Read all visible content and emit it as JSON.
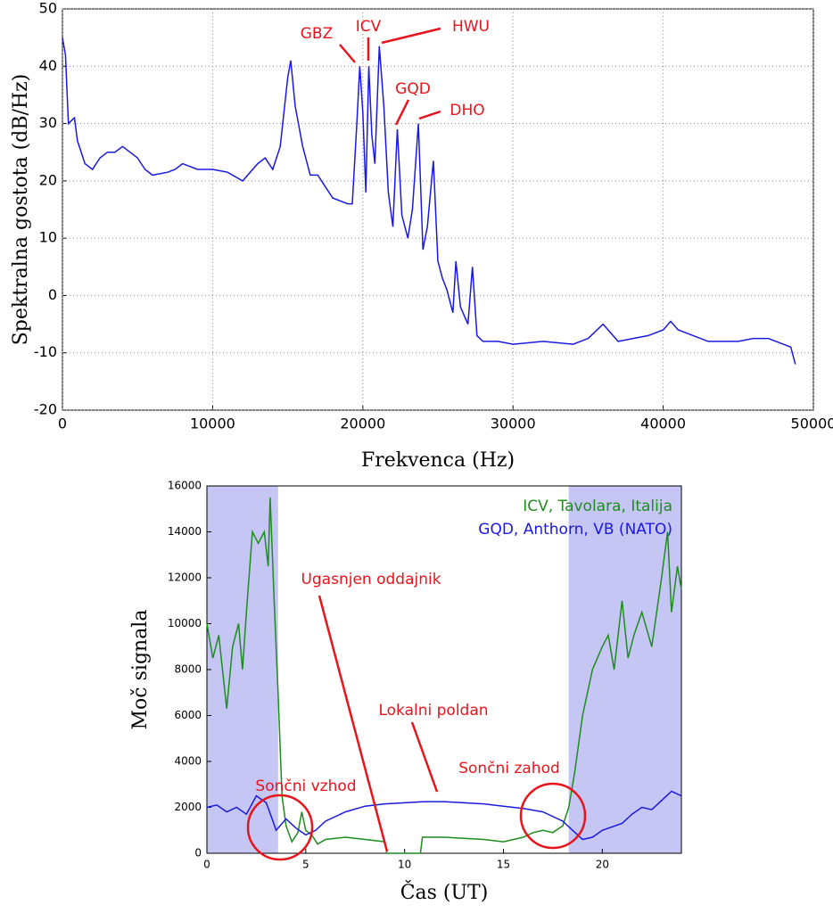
{
  "chart_data": [
    {
      "type": "line",
      "xlabel": "Frekvenca (Hz)",
      "ylabel": "Spektralna gostota (dB/Hz)",
      "xlim": [
        0,
        50000
      ],
      "xticks": [
        0,
        10000,
        20000,
        30000,
        40000,
        50000
      ],
      "ylim": [
        -20,
        50
      ],
      "yticks": [
        -20,
        -10,
        0,
        10,
        20,
        30,
        40,
        50
      ],
      "grid": true,
      "annotations": [
        "GBZ",
        "ICV",
        "HWU",
        "GQD",
        "DHO"
      ],
      "annotation_color": "#e8141c",
      "x": [
        0,
        200,
        400,
        800,
        1000,
        1500,
        2000,
        2500,
        3000,
        3500,
        4000,
        4500,
        5000,
        5500,
        6000,
        7000,
        7500,
        8000,
        9000,
        10000,
        11000,
        12000,
        13000,
        13500,
        14000,
        14500,
        15000,
        15200,
        15500,
        16000,
        16500,
        17000,
        17500,
        18000,
        19000,
        19300,
        19600,
        19800,
        20000,
        20200,
        20400,
        20600,
        20800,
        21100,
        21400,
        21700,
        22000,
        22300,
        22600,
        23000,
        23300,
        23700,
        24000,
        24300,
        24700,
        25000,
        25300,
        25600,
        26000,
        26200,
        26500,
        27000,
        27300,
        27600,
        28000,
        29000,
        30000,
        32000,
        34000,
        35000,
        36000,
        37000,
        38000,
        39000,
        40000,
        40500,
        41000,
        42000,
        43000,
        44000,
        45000,
        46000,
        47000,
        48000,
        48500,
        48800
      ],
      "series": [
        {
          "name": null,
          "color": "#1a1adf",
          "values": [
            45,
            42,
            30,
            31,
            27,
            23,
            22,
            24,
            25,
            25,
            26,
            25,
            24,
            22,
            21,
            21.5,
            22,
            23,
            22,
            22,
            21.5,
            20,
            23,
            24,
            22,
            26,
            38,
            41,
            33,
            26,
            21,
            21,
            19,
            17,
            16,
            16,
            30,
            40,
            32,
            18,
            40,
            28,
            23,
            43.5,
            33,
            18,
            12,
            29,
            14,
            10,
            15,
            30,
            8,
            12,
            23.5,
            6,
            3,
            1,
            -3,
            6,
            -2,
            -5,
            5,
            -7,
            -8,
            -8,
            -8.5,
            -8,
            -8.5,
            -7.5,
            -5,
            -8,
            -7.5,
            -7,
            -6,
            -4.5,
            -6,
            -7,
            -8,
            -8,
            -8,
            -7.5,
            -7.5,
            -8.5,
            -9,
            -12
          ]
        }
      ]
    },
    {
      "type": "line",
      "xlabel": "Čas (UT)",
      "ylabel": "Moč signala",
      "xlim": [
        0,
        24
      ],
      "xticks": [
        0,
        5,
        10,
        15,
        20
      ],
      "ylim": [
        0,
        16000
      ],
      "yticks": [
        0,
        2000,
        4000,
        6000,
        8000,
        10000,
        12000,
        14000,
        16000
      ],
      "grid": false,
      "shaded_spans": [
        [
          0,
          3.6
        ],
        [
          18.3,
          24
        ]
      ],
      "shade_color": "#c6c6f5",
      "annotations": [
        "Ugasnjen oddajnik",
        "Lokalni poldan",
        "Sončni vzhod",
        "Sončni zahod"
      ],
      "annotation_color": "#e8141c",
      "series": [
        {
          "name": "ICV, Tavolara, Italija",
          "color": "#1e8c1e",
          "x": [
            0,
            0.3,
            0.6,
            1,
            1.3,
            1.6,
            1.8,
            2,
            2.3,
            2.6,
            2.9,
            3.1,
            3.2,
            3.4,
            3.6,
            3.8,
            4,
            4.3,
            4.6,
            4.8,
            5,
            5.3,
            5.6,
            6,
            7,
            8,
            9,
            9.1,
            10.8,
            10.9,
            12,
            13,
            14,
            15,
            16,
            16.5,
            17,
            17.5,
            18,
            18.3,
            18.6,
            19,
            19.5,
            20,
            20.3,
            20.6,
            21,
            21.3,
            21.6,
            22,
            22.5,
            23,
            23.3,
            23.5,
            23.8,
            24
          ],
          "values": [
            10000,
            8500,
            9500,
            6300,
            9000,
            10000,
            8000,
            10500,
            14000,
            13500,
            14000,
            12500,
            15500,
            11000,
            7000,
            2500,
            1200,
            500,
            900,
            1800,
            1000,
            800,
            400,
            600,
            700,
            600,
            500,
            0,
            0,
            700,
            700,
            650,
            600,
            500,
            700,
            900,
            1000,
            900,
            1200,
            2000,
            3500,
            6000,
            8000,
            9000,
            9500,
            8000,
            11000,
            8500,
            9500,
            10500,
            9000,
            12000,
            14000,
            10500,
            12500,
            11500
          ]
        },
        {
          "name": "GQD, Anthorn, VB (NATO)",
          "color": "#1a1adf",
          "x": [
            0,
            0.5,
            1,
            1.5,
            2,
            2.5,
            3,
            3.3,
            3.5,
            4,
            4.5,
            5,
            5.5,
            6,
            7,
            8,
            9,
            10,
            11,
            12,
            13,
            14,
            15,
            16,
            17,
            18,
            18.5,
            19,
            19.5,
            20,
            21,
            21.5,
            22,
            22.5,
            23,
            23.5,
            24
          ],
          "values": [
            2000,
            2100,
            1800,
            2000,
            1700,
            2500,
            2200,
            1500,
            1000,
            1500,
            1100,
            800,
            1000,
            1400,
            1800,
            2050,
            2150,
            2200,
            2250,
            2250,
            2200,
            2150,
            2050,
            1950,
            1800,
            1400,
            1000,
            600,
            700,
            1000,
            1300,
            1700,
            2000,
            1900,
            2300,
            2700,
            2500
          ]
        }
      ]
    }
  ]
}
